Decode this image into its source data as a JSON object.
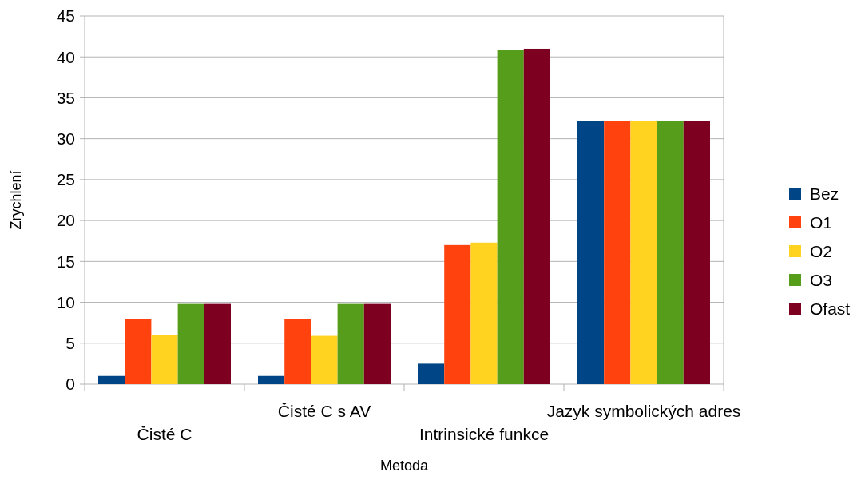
{
  "chart_data": {
    "type": "bar",
    "xlabel": "Metoda",
    "ylabel": "Zrychlení",
    "categories": [
      "Čisté C",
      "Čisté C s AV",
      "Intrinsické funkce",
      "Jazyk symbolických adres"
    ],
    "series": [
      {
        "name": "Bez",
        "color": "#004586",
        "values": [
          1.0,
          1.0,
          2.5,
          32.2
        ]
      },
      {
        "name": "O1",
        "color": "#ff420e",
        "values": [
          8.0,
          8.0,
          17.0,
          32.2
        ]
      },
      {
        "name": "O2",
        "color": "#ffd320",
        "values": [
          6.0,
          5.9,
          17.3,
          32.2
        ]
      },
      {
        "name": "O3",
        "color": "#579d1c",
        "values": [
          9.8,
          9.8,
          40.9,
          32.2
        ]
      },
      {
        "name": "Ofast",
        "color": "#7e0021",
        "values": [
          9.8,
          9.8,
          41.0,
          32.2
        ]
      }
    ],
    "ylim": [
      0,
      45
    ],
    "yticks": [
      0,
      5,
      10,
      15,
      20,
      25,
      30,
      35,
      40,
      45
    ],
    "grid": "y",
    "legend": "right"
  }
}
